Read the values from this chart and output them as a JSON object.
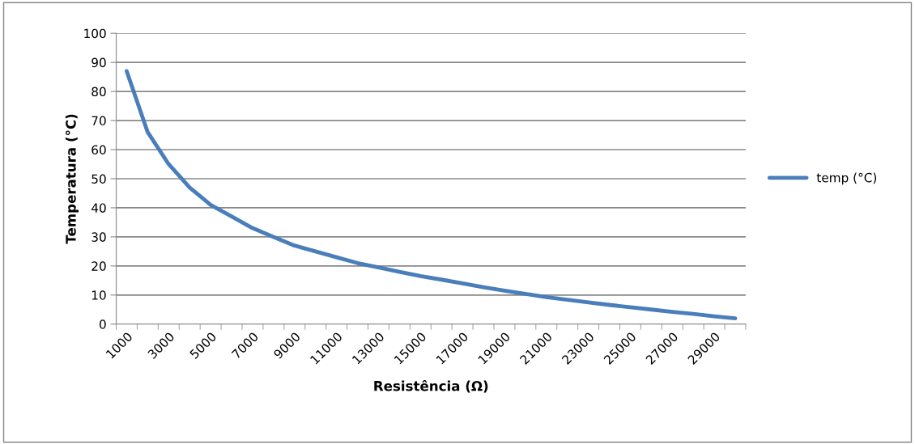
{
  "chart_data": {
    "type": "line",
    "xlabel": "Resistência (Ω)",
    "ylabel": "Temperatura (°C)",
    "categories": [
      "1000",
      null,
      "3000",
      null,
      "5000",
      null,
      "7000",
      null,
      "9000",
      null,
      "11000",
      null,
      "13000",
      null,
      "15000",
      null,
      "17000",
      null,
      "19000",
      null,
      "21000",
      null,
      "23000",
      null,
      "25000",
      null,
      "27000",
      null,
      "29000",
      null
    ],
    "series": [
      {
        "name": "temp (°C)",
        "color": "#4a7ebb",
        "values": [
          87,
          66,
          55,
          47,
          41,
          37,
          33,
          30,
          27,
          25,
          23,
          21,
          19.5,
          18,
          16.5,
          15.3,
          14,
          12.7,
          11.5,
          10.4,
          9.3,
          8.4,
          7.5,
          6.6,
          5.8,
          5,
          4.2,
          3.5,
          2.7,
          2
        ]
      }
    ],
    "ylim": [
      0,
      100
    ],
    "yticks": [
      0,
      10,
      20,
      30,
      40,
      50,
      60,
      70,
      80,
      90,
      100
    ],
    "grid": "y",
    "legend": "right",
    "marker": "none",
    "line_style": "solid"
  }
}
